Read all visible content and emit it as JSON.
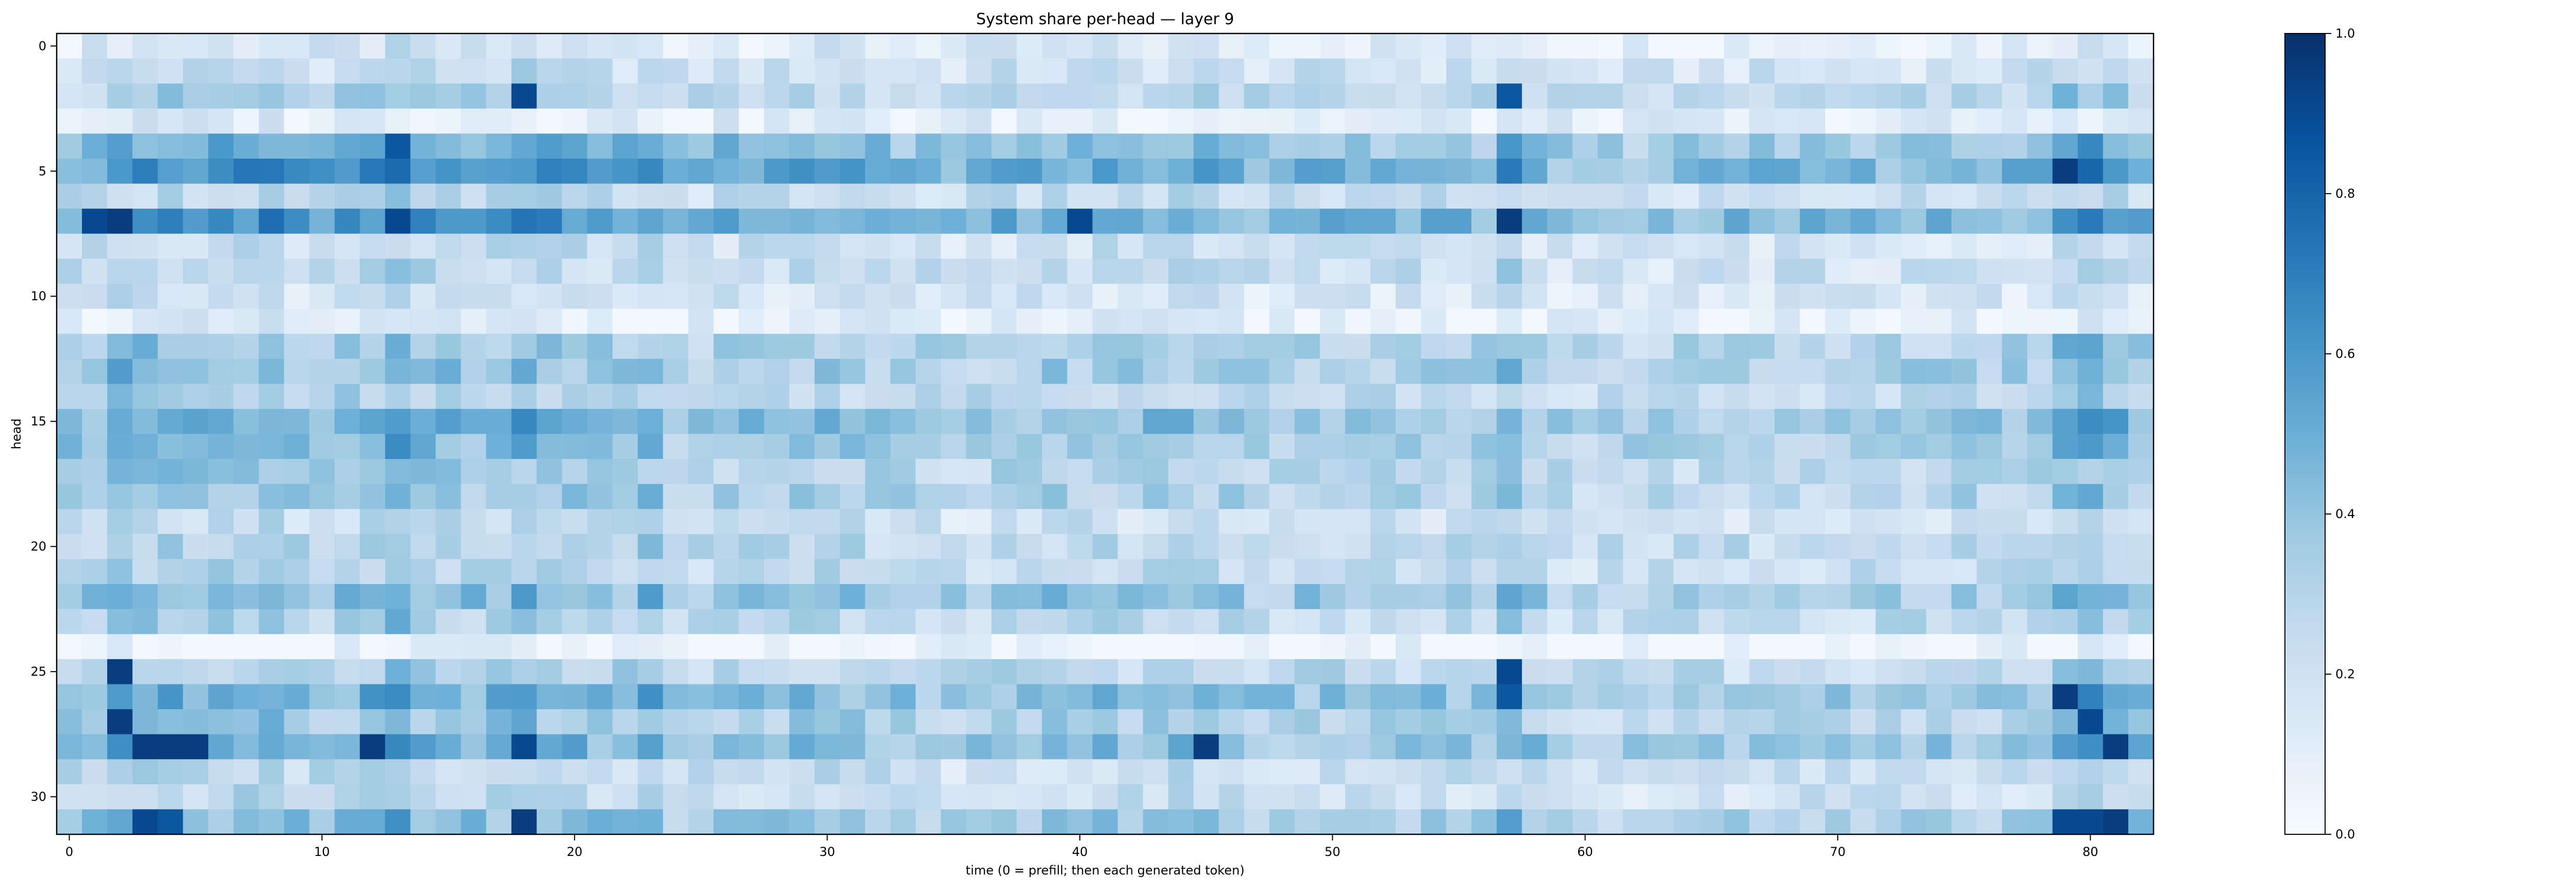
{
  "chart_data": {
    "type": "heatmap",
    "title": "System share per-head — layer 9",
    "xlabel": "time (0 = prefill; then each generated token)",
    "ylabel": "head",
    "x_range": [
      0,
      82
    ],
    "y_range": [
      0,
      31
    ],
    "x_ticks": [
      0,
      10,
      20,
      30,
      40,
      50,
      60,
      70,
      80
    ],
    "y_ticks": [
      0,
      5,
      10,
      15,
      20,
      25,
      30
    ],
    "colormap": "Blues",
    "vmin": 0.0,
    "vmax": 1.0,
    "colorbar_ticks": [
      "0.0",
      "0.2",
      "0.4",
      "0.6",
      "0.8",
      "1.0"
    ],
    "grid": false,
    "head_profile": [
      0.15,
      0.22,
      0.3,
      0.12,
      0.45,
      0.55,
      0.25,
      0.55,
      0.22,
      0.25,
      0.18,
      0.1,
      0.35,
      0.38,
      0.3,
      0.45,
      0.4,
      0.32,
      0.35,
      0.22,
      0.3,
      0.28,
      0.42,
      0.3,
      0.05,
      0.3,
      0.45,
      0.35,
      0.45,
      0.25,
      0.25,
      0.4
    ],
    "time_profile": [
      0.95,
      0.95,
      1.25,
      1.15,
      1.15,
      1.1,
      1.1,
      1.15,
      1.25,
      1.0,
      1.0,
      1.05,
      1.15,
      1.4,
      1.1,
      1.05,
      1.0,
      1.05,
      1.25,
      1.1,
      1.05,
      1.0,
      1.0,
      1.15,
      0.8,
      0.85,
      0.95,
      0.95,
      0.9,
      0.95,
      1.0,
      0.95,
      0.9,
      0.9,
      0.85,
      0.8,
      0.85,
      0.9,
      0.9,
      0.95,
      0.95,
      0.95,
      0.9,
      0.95,
      1.0,
      0.95,
      0.9,
      0.85,
      0.85,
      0.9,
      0.9,
      0.85,
      0.85,
      0.9,
      0.9,
      0.85,
      0.85,
      1.25,
      0.9,
      0.75,
      0.75,
      0.75,
      0.75,
      0.75,
      0.8,
      0.8,
      0.8,
      0.8,
      0.8,
      0.8,
      0.8,
      0.8,
      0.8,
      0.85,
      0.85,
      0.85,
      0.85,
      0.85,
      0.9,
      1.35,
      1.3,
      1.2,
      1.0
    ],
    "strong_cells": [
      [
        2,
        25,
        0.95
      ],
      [
        2,
        27,
        0.95
      ],
      [
        3,
        28,
        0.95
      ],
      [
        4,
        28,
        0.95
      ],
      [
        5,
        28,
        0.95
      ],
      [
        1,
        7,
        0.9
      ],
      [
        2,
        7,
        0.95
      ],
      [
        12,
        28,
        0.95
      ],
      [
        13,
        7,
        0.9
      ],
      [
        13,
        4,
        0.85
      ],
      [
        18,
        2,
        0.9
      ],
      [
        18,
        28,
        0.9
      ],
      [
        18,
        31,
        0.95
      ],
      [
        40,
        7,
        0.9
      ],
      [
        45,
        28,
        0.95
      ],
      [
        57,
        7,
        0.95
      ],
      [
        57,
        25,
        0.9
      ],
      [
        57,
        26,
        0.85
      ],
      [
        57,
        2,
        0.85
      ],
      [
        79,
        5,
        0.95
      ],
      [
        79,
        26,
        0.95
      ],
      [
        80,
        27,
        0.9
      ],
      [
        81,
        28,
        0.95
      ],
      [
        81,
        31,
        0.95
      ],
      [
        79,
        31,
        0.9
      ],
      [
        80,
        31,
        0.9
      ],
      [
        3,
        31,
        0.9
      ],
      [
        4,
        31,
        0.85
      ]
    ]
  }
}
